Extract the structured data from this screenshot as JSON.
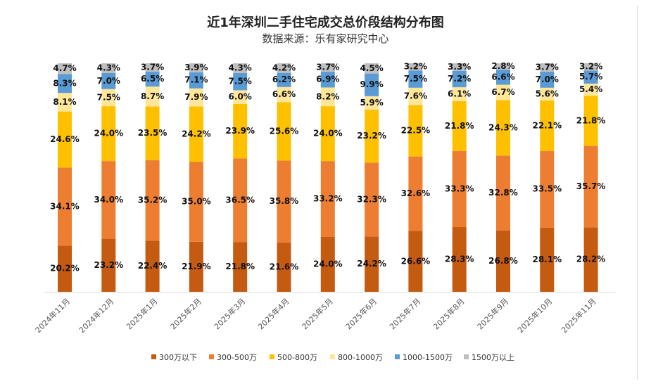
{
  "chart_data": {
    "type": "bar",
    "stacked": true,
    "title": "近1年深圳二手住宅成交总价段结构分布图",
    "subtitle": "数据来源：乐有家研究中心",
    "categories": [
      "2024年11月",
      "2024年12月",
      "2025年1月",
      "2025年2月",
      "2025年3月",
      "2025年4月",
      "2025年5月",
      "2025年6月",
      "2025年7月",
      "2025年8月",
      "2025年9月",
      "2025年10月",
      "2025年11月"
    ],
    "series": [
      {
        "name": "300万以下",
        "color": "#C55A11",
        "values": [
          20.2,
          23.2,
          22.4,
          21.9,
          21.8,
          21.6,
          24.0,
          24.2,
          26.6,
          28.3,
          26.8,
          28.1,
          28.2
        ]
      },
      {
        "name": "300-500万",
        "color": "#ED7D31",
        "values": [
          34.1,
          34.0,
          35.2,
          35.0,
          36.5,
          35.8,
          33.2,
          32.3,
          32.6,
          33.3,
          32.8,
          33.5,
          35.7
        ]
      },
      {
        "name": "500-800万",
        "color": "#FFC000",
        "values": [
          24.6,
          24.0,
          23.5,
          24.2,
          23.9,
          25.6,
          24.0,
          23.2,
          22.5,
          21.8,
          24.3,
          22.1,
          21.8
        ]
      },
      {
        "name": "800-1000万",
        "color": "#FFE699",
        "values": [
          8.1,
          7.5,
          8.7,
          7.9,
          6.0,
          6.6,
          8.2,
          5.9,
          7.6,
          6.1,
          6.7,
          5.6,
          5.4
        ]
      },
      {
        "name": "1000-1500万",
        "color": "#5B9BD5",
        "values": [
          8.3,
          7.0,
          6.5,
          7.1,
          7.5,
          6.2,
          6.9,
          9.9,
          7.5,
          7.2,
          6.6,
          7.0,
          5.7
        ]
      },
      {
        "name": "1500万以上",
        "color": "#BFBFBF",
        "values": [
          4.7,
          4.3,
          3.7,
          3.9,
          4.3,
          4.2,
          3.7,
          4.5,
          3.2,
          3.3,
          2.8,
          3.7,
          3.2
        ]
      }
    ],
    "unit": "%",
    "ylim": [
      0,
      100
    ],
    "grid": false,
    "legend_position": "bottom"
  }
}
